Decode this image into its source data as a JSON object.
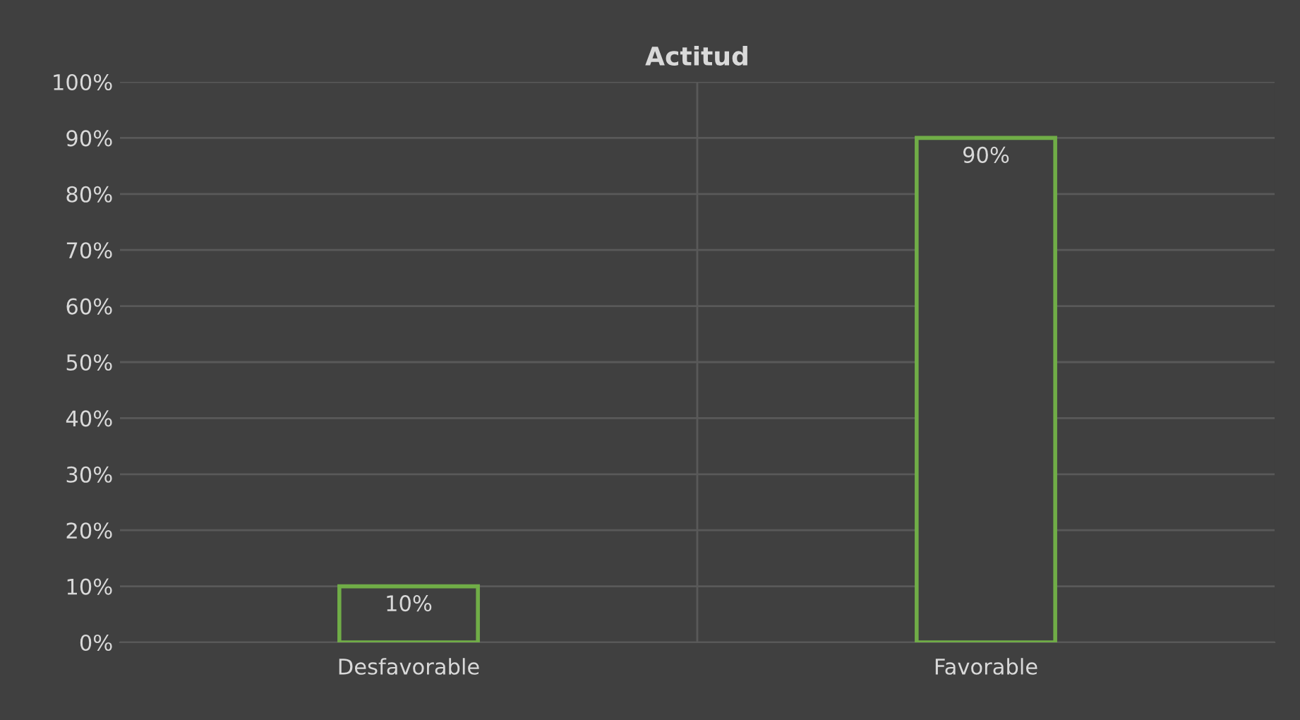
{
  "chart_data": {
    "type": "bar",
    "title": "Actitud",
    "categories": [
      "Desfavorable",
      "Favorable"
    ],
    "series": [
      {
        "color": "#70ad47",
        "values": [
          10,
          90
        ]
      }
    ],
    "value_labels": [
      "10%",
      "90%"
    ],
    "ylim": [
      0,
      100
    ],
    "yticks": [
      {
        "value": 0,
        "label": "0%"
      },
      {
        "value": 10,
        "label": "10%"
      },
      {
        "value": 20,
        "label": "20%"
      },
      {
        "value": 30,
        "label": "30%"
      },
      {
        "value": 40,
        "label": "40%"
      },
      {
        "value": 50,
        "label": "50%"
      },
      {
        "value": 60,
        "label": "60%"
      },
      {
        "value": 70,
        "label": "70%"
      },
      {
        "value": 80,
        "label": "80%"
      },
      {
        "value": 90,
        "label": "90%"
      },
      {
        "value": 100,
        "label": "100%"
      }
    ],
    "grid": true,
    "legend": false
  }
}
